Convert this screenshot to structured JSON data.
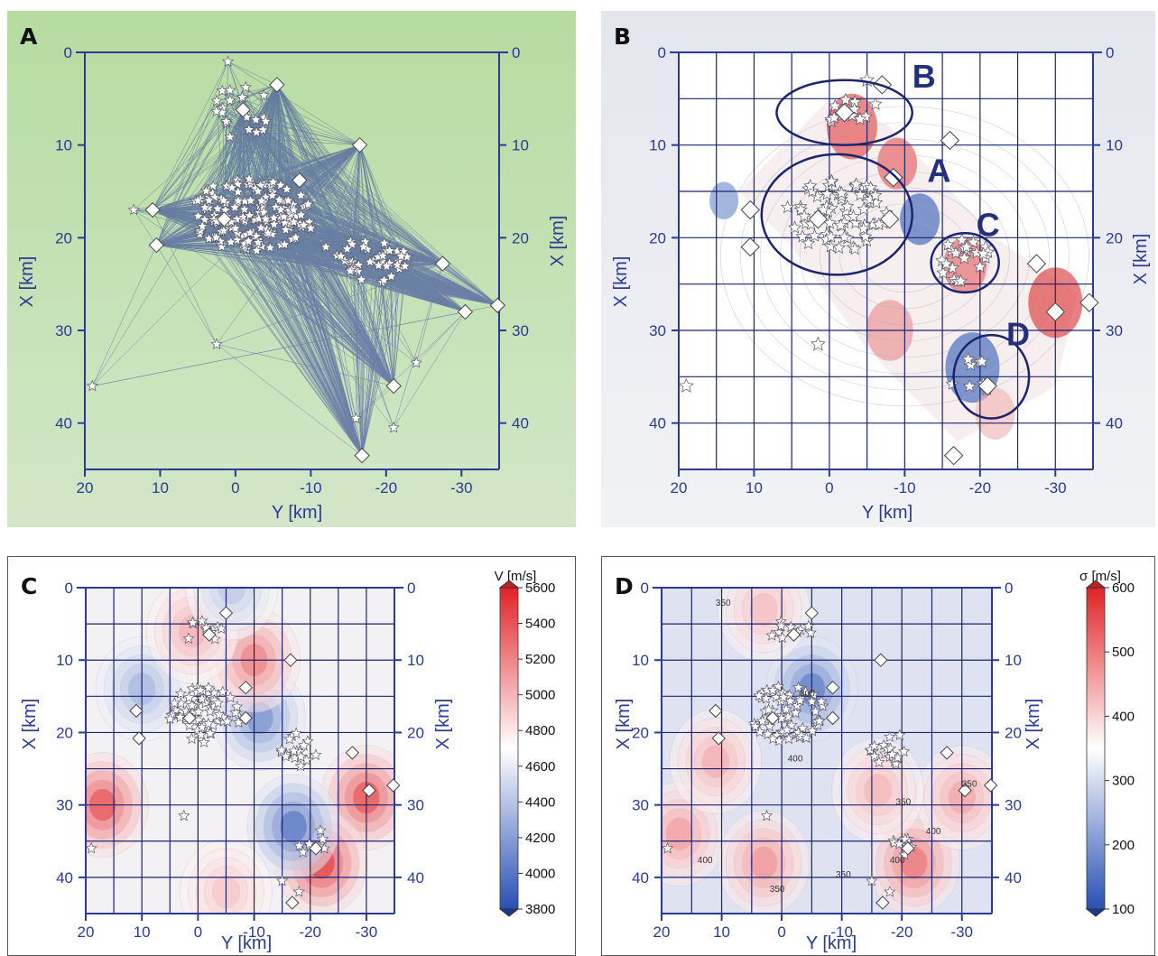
{
  "panels": [
    {
      "label": "A",
      "xlabel": "Y [km]",
      "ylabel": "X [km]"
    },
    {
      "label": "B",
      "xlabel": "Y [km]",
      "ylabel": "X [km]",
      "regions": [
        "B",
        "A",
        "C",
        "D"
      ]
    },
    {
      "label": "C",
      "xlabel": "Y [km]",
      "ylabel": "X [km]",
      "colorbar": {
        "title": "V [m/s]",
        "ticks": [
          "5600",
          "5400",
          "5200",
          "5000",
          "4800",
          "4600",
          "4400",
          "4200",
          "4000",
          "3800"
        ]
      }
    },
    {
      "label": "D",
      "xlabel": "Y [km]",
      "ylabel": "X [km]",
      "colorbar": {
        "title": "σ [m/s]",
        "ticks": [
          "600",
          "500",
          "400",
          "300",
          "200",
          "100"
        ]
      },
      "contour_labels": [
        "350",
        "400",
        "350",
        "400",
        "350",
        "400",
        "350",
        "400",
        "300",
        "350"
      ]
    }
  ],
  "chart_data": [
    {
      "type": "scatter",
      "title": "",
      "xlabel": "Y [km]",
      "ylabel": "X [km]",
      "xlim": [
        20,
        -35
      ],
      "ylim": [
        45,
        0
      ],
      "xticks": [
        "20",
        "10",
        "0",
        "-10",
        "-20",
        "-30"
      ],
      "yticks": [
        "0",
        "10",
        "20",
        "30",
        "40"
      ],
      "series": [
        {
          "marker": "diamond",
          "points": [
            [
              -5.5,
              3.5
            ],
            [
              -1,
              6.2
            ],
            [
              -16.5,
              10
            ],
            [
              -8.5,
              13.8
            ],
            [
              11,
              17
            ],
            [
              1.5,
              18
            ],
            [
              10.5,
              20.8
            ],
            [
              -27.5,
              22.8
            ],
            [
              -30.5,
              28
            ],
            [
              -34.8,
              27.3
            ],
            [
              -21,
              36
            ],
            [
              -16.8,
              43.5
            ]
          ]
        },
        {
          "marker": "star",
          "points": [
            [
              1,
              1
            ],
            [
              -1.5,
              7
            ],
            [
              -16,
              39.5
            ],
            [
              -21,
              40.5
            ],
            [
              -24,
              33.5
            ],
            [
              19,
              36
            ],
            [
              2.5,
              31.5
            ],
            [
              13.5,
              17
            ],
            [
              5,
              16
            ],
            [
              -12,
              21
            ],
            [
              -14,
              22
            ],
            [
              -17,
              21
            ],
            [
              -19,
              23
            ],
            [
              -22,
              22
            ],
            [
              -10,
              19
            ],
            [
              -8,
              20
            ],
            [
              -6,
              17
            ],
            [
              -4,
              18
            ],
            [
              -2,
              16
            ],
            [
              0,
              19
            ],
            [
              -3,
              15
            ],
            [
              -5,
              14
            ],
            [
              -7,
              16
            ]
          ]
        }
      ],
      "ray_color": "#1f2f96"
    },
    {
      "type": "heatmap",
      "title": "",
      "xlabel": "Y [km]",
      "ylabel": "X [km]",
      "xlim": [
        20,
        -35
      ],
      "ylim": [
        45,
        0
      ],
      "xticks": [
        "20",
        "10",
        "0",
        "-10",
        "-20",
        "-30"
      ],
      "yticks": [
        "0",
        "10",
        "20",
        "30",
        "40"
      ],
      "regions": [
        {
          "name": "B",
          "cx": -2,
          "cy": 6.5,
          "rx": 9,
          "ry": 3.5
        },
        {
          "name": "A",
          "cx": -1,
          "cy": 17.5,
          "rx": 10,
          "ry": 6.5
        },
        {
          "name": "C",
          "cx": -18,
          "cy": 22.7,
          "rx": 4.5,
          "ry": 3.2
        },
        {
          "name": "D",
          "cx": -21.5,
          "cy": 35,
          "rx": 5,
          "ry": 4.5
        }
      ],
      "grid": true
    },
    {
      "type": "heatmap",
      "title": "",
      "xlabel": "Y [km]",
      "ylabel": "X [km]",
      "xlim": [
        20,
        -35
      ],
      "ylim": [
        45,
        0
      ],
      "xticks": [
        "20",
        "10",
        "0",
        "-10",
        "-20",
        "-30"
      ],
      "yticks": [
        "0",
        "10",
        "20",
        "30",
        "40"
      ],
      "colorbar": {
        "label": "V [m/s]",
        "range": [
          3800,
          5600
        ]
      },
      "anomalies": [
        {
          "y": 17,
          "x": 30,
          "v": 5450
        },
        {
          "y": -30,
          "x": 29,
          "v": 5450
        },
        {
          "y": -22,
          "x": 38,
          "v": 5550
        },
        {
          "y": -17,
          "x": 33,
          "v": 3950
        },
        {
          "y": -11,
          "x": 18,
          "v": 4100
        },
        {
          "y": 10,
          "x": 14,
          "v": 4300
        },
        {
          "y": -10,
          "x": 10,
          "v": 5250
        },
        {
          "y": 1,
          "x": 6,
          "v": 5050
        },
        {
          "y": -6,
          "x": 0,
          "v": 4400
        },
        {
          "y": -5,
          "x": 42,
          "v": 4950
        }
      ],
      "grid": true
    },
    {
      "type": "heatmap",
      "title": "",
      "xlabel": "Y [km]",
      "ylabel": "X [km]",
      "xlim": [
        20,
        -35
      ],
      "ylim": [
        45,
        0
      ],
      "xticks": [
        "20",
        "10",
        "0",
        "-10",
        "-20",
        "-30"
      ],
      "yticks": [
        "0",
        "10",
        "20",
        "30",
        "40"
      ],
      "colorbar": {
        "label": "σ [m/s]",
        "range": [
          100,
          600
        ]
      },
      "anomalies": [
        {
          "y": -5,
          "x": 14,
          "v": 150
        },
        {
          "y": -22,
          "x": 38,
          "v": 520
        },
        {
          "y": 17,
          "x": 34,
          "v": 470
        },
        {
          "y": 3,
          "x": 38,
          "v": 480
        },
        {
          "y": 11,
          "x": 24,
          "v": 450
        },
        {
          "y": -30,
          "x": 29,
          "v": 460
        },
        {
          "y": 3,
          "x": 3,
          "v": 430
        },
        {
          "y": -16,
          "x": 28,
          "v": 440
        }
      ],
      "grid": true
    }
  ]
}
